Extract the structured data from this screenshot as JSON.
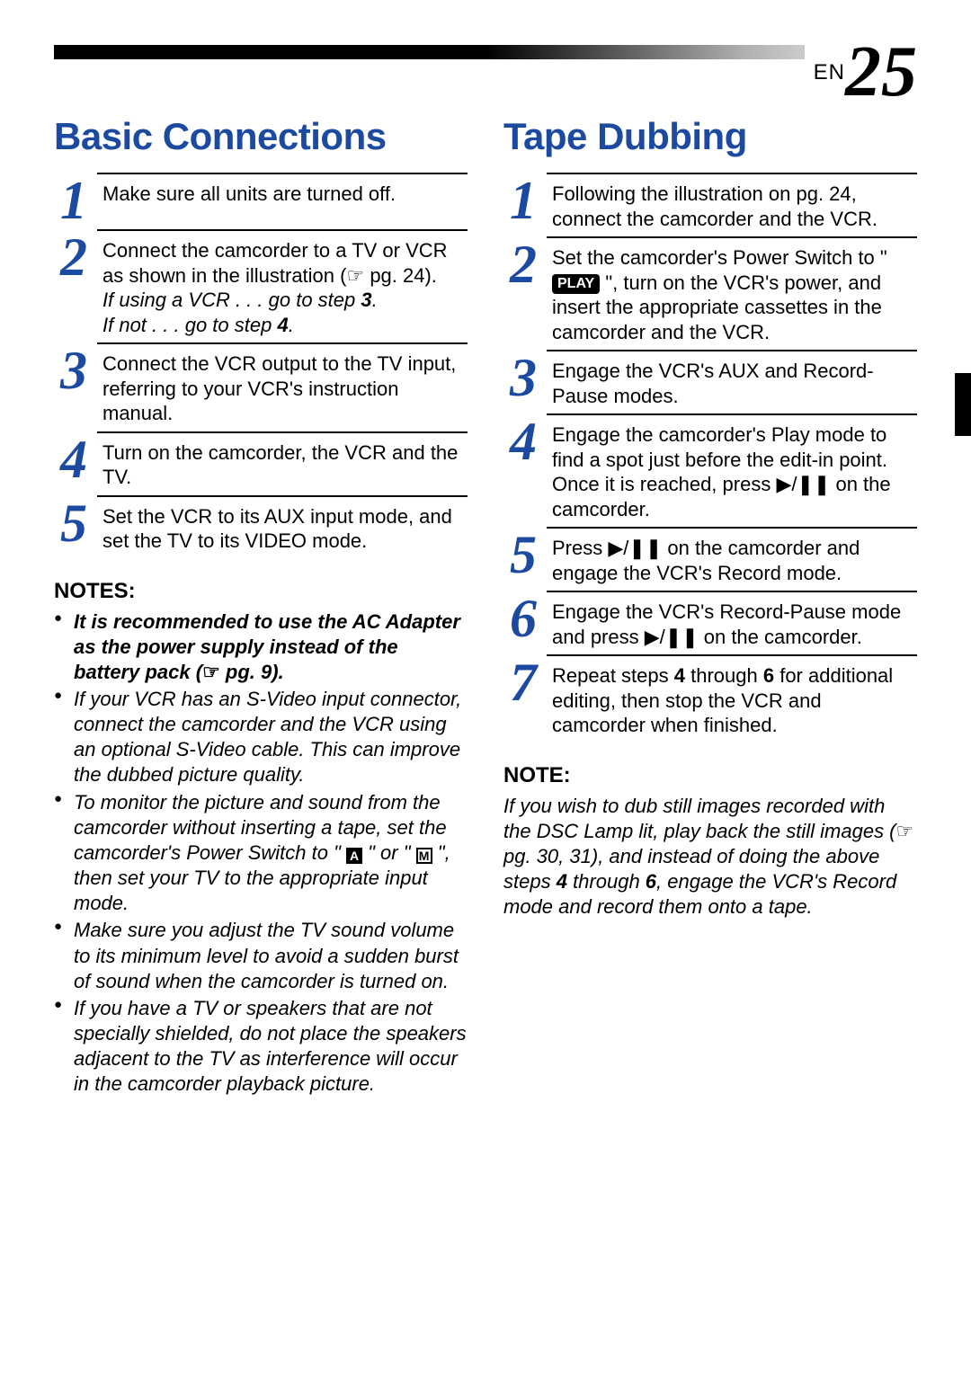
{
  "page": {
    "prefix": "EN",
    "number": "25"
  },
  "colors": {
    "accent": "#1b4aa0",
    "text": "#000000",
    "bg": "#ffffff"
  },
  "left": {
    "title": "Basic Connections",
    "steps": [
      {
        "n": "1",
        "html": "Make sure all units are turned off."
      },
      {
        "n": "2",
        "html": "Connect the camcorder to a TV or VCR as shown in the illustration (<span class='icon-ref'>☞</span> pg. 24).<br><i>If using a VCR . . . go to step <b>3</b>.<br>If not . . . go to step <b>4</b>.</i>"
      },
      {
        "n": "3",
        "html": "Connect the VCR output to the TV input, referring to your VCR's instruction manual."
      },
      {
        "n": "4",
        "html": "Turn on the camcorder, the VCR and the TV."
      },
      {
        "n": "5",
        "html": "Set the VCR to its AUX input mode, and set the TV to its VIDEO mode."
      }
    ],
    "notes_heading": "NOTES:",
    "notes": [
      "<b>It is recommended to use the AC Adapter as the power supply instead of the battery pack (<span class='icon-ref'>☞</span> pg. 9).</b>",
      "If your VCR has an S-Video input connector, connect the camcorder and the VCR using an optional S-Video cable. This can improve the dubbed picture quality.",
      "To monitor the picture and sound from the camcorder without inserting a tape, set the camcorder's Power Switch to \" <span class='icon-box black'>A</span> \" or \" <span class='icon-box'>M</span> \", then set your TV to the appropriate input mode.",
      "Make sure you adjust the TV sound volume to its minimum level to avoid a sudden burst of sound when the camcorder is turned on.",
      "If you have a TV or speakers that are not specially shielded, do not place the speakers adjacent to the TV as interference will occur in the camcorder playback picture."
    ]
  },
  "right": {
    "title": "Tape Dubbing",
    "steps": [
      {
        "n": "1",
        "html": "Following the illustration on pg. 24, connect the camcorder and the VCR."
      },
      {
        "n": "2",
        "html": "Set the camcorder's Power Switch to \" <span class='icon-play-badge'>PLAY</span> \", turn on the VCR's power, and insert the appropriate cassettes in the camcorder and the VCR."
      },
      {
        "n": "3",
        "html": "Engage the VCR's AUX and Record-Pause modes."
      },
      {
        "n": "4",
        "html": "Engage the camcorder's Play mode to find a spot just before the edit-in point. Once it is reached, press ▶/❚❚ on the camcorder."
      },
      {
        "n": "5",
        "html": "Press ▶/❚❚ on the camcorder and engage the VCR's Record mode."
      },
      {
        "n": "6",
        "html": "Engage the VCR's Record-Pause mode and press ▶/❚❚ on the camcorder."
      },
      {
        "n": "7",
        "html": "Repeat steps <b>4</b> through <b>6</b> for additional editing, then stop the VCR and camcorder when finished."
      }
    ],
    "note_heading": "NOTE:",
    "note_body": "If you wish to dub still images recorded with the DSC Lamp lit, play back the still images (<span class='icon-ref'>☞</span> pg. 30, 31), and instead of doing the above steps <b>4</b> through <b>6</b>, engage the VCR's Record mode and record them onto a tape."
  }
}
